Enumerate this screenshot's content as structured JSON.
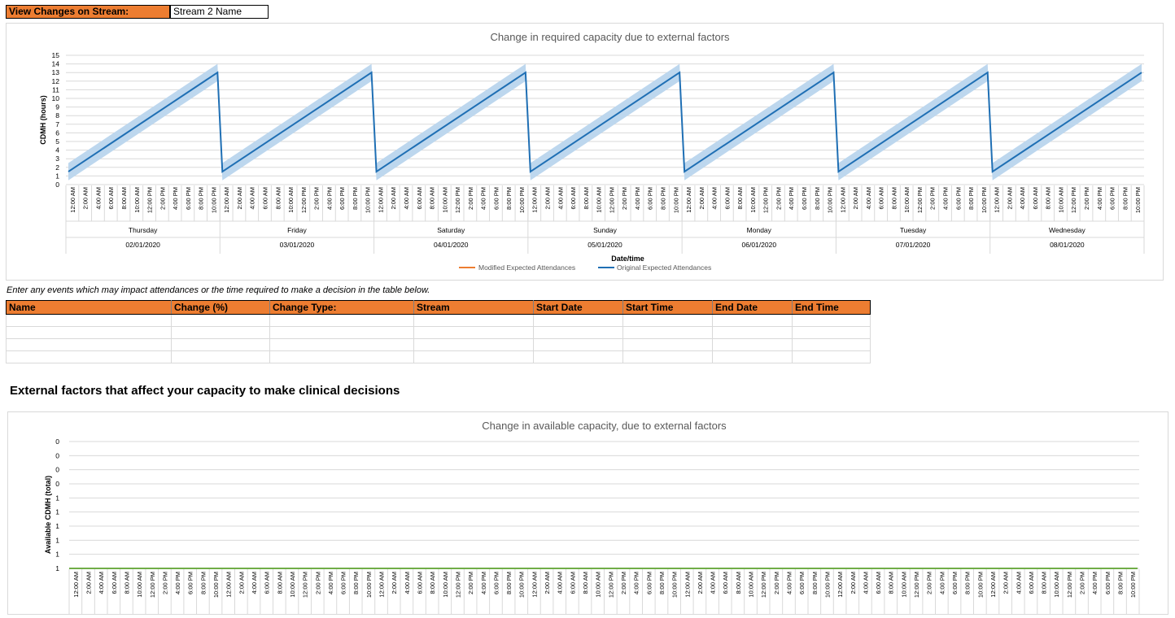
{
  "header": {
    "label": "View Changes on Stream:",
    "stream_name": "Stream 2 Name"
  },
  "instructions": "Enter any events which may impact attendances or the time required to make a decision in the table below.",
  "events_table": {
    "columns": [
      "Name",
      "Change (%)",
      "Change Type:",
      "Stream",
      "Start Date",
      "Start Time",
      "End Date",
      "End Time"
    ],
    "empty_rows": 4
  },
  "section_title": "External factors that affect your capacity to make clinical decisions",
  "time_ticks": [
    "12:00 AM",
    "2:00 AM",
    "4:00 AM",
    "6:00 AM",
    "8:00 AM",
    "10:00 AM",
    "12:00 PM",
    "2:00 PM",
    "4:00 PM",
    "6:00 PM",
    "8:00 PM",
    "10:00 PM"
  ],
  "colors": {
    "orange": "#ED7D31",
    "blue": "#1F6FB4",
    "band": "#BDD7EE",
    "green": "#70AD47"
  },
  "chart_data": [
    {
      "type": "line",
      "title": "Change in required capacity due to external factors",
      "xlabel": "Date/time",
      "ylabel": "CDMH (hours)",
      "ylim": [
        0,
        15
      ],
      "yticks": [
        0,
        1,
        2,
        3,
        4,
        5,
        6,
        7,
        8,
        9,
        10,
        11,
        12,
        13,
        14,
        15
      ],
      "days": [
        {
          "day": "Thursday",
          "date": "02/01/2020"
        },
        {
          "day": "Friday",
          "date": "03/01/2020"
        },
        {
          "day": "Saturday",
          "date": "04/01/2020"
        },
        {
          "day": "Sunday",
          "date": "05/01/2020"
        },
        {
          "day": "Monday",
          "date": "06/01/2020"
        },
        {
          "day": "Tuesday",
          "date": "07/01/2020"
        },
        {
          "day": "Wednesday",
          "date": "08/01/2020"
        }
      ],
      "daily_profile": {
        "start": 1.5,
        "end": 13,
        "band": 1
      },
      "legend": [
        "Modified Expected Attendances",
        "Original Expected Attendances"
      ],
      "legend_position": "bottom",
      "series": [
        {
          "name": "Modified Expected Attendances",
          "color": "#ED7D31"
        },
        {
          "name": "Original Expected Attendances",
          "color": "#1F6FB4"
        }
      ],
      "grid": true
    },
    {
      "type": "line",
      "title": "Change in available capacity, due to external factors",
      "ylabel": "Available CDMH (total)",
      "ytick_labels": [
        "0",
        "0",
        "0",
        "0",
        "1",
        "1",
        "1",
        "1",
        "1",
        "1"
      ],
      "values_constant": 0,
      "series": [
        {
          "color": "#70AD47"
        }
      ],
      "grid": true
    }
  ]
}
